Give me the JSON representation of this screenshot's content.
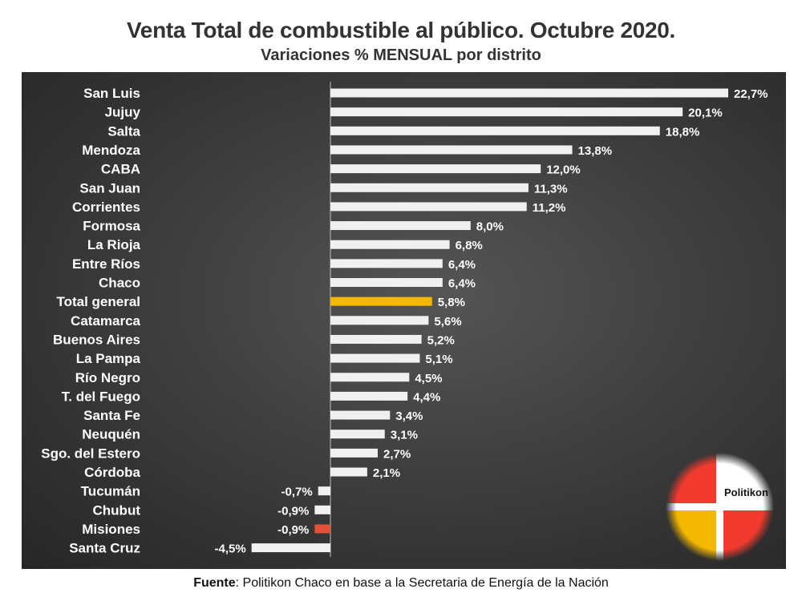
{
  "chart_data": {
    "type": "bar",
    "orientation": "horizontal",
    "title": "Venta Total de combustible al público. Octubre 2020.",
    "subtitle": "Variaciones % MENSUAL por distrito",
    "categories": [
      "San Luis",
      "Jujuy",
      "Salta",
      "Mendoza",
      "CABA",
      "San Juan",
      "Corrientes",
      "Formosa",
      "La Rioja",
      "Entre Ríos",
      "Chaco",
      "Total general",
      "Catamarca",
      "Buenos Aires",
      "La Pampa",
      "Río Negro",
      "T. del Fuego",
      "Santa Fe",
      "Neuquén",
      "Sgo. del Estero",
      "Córdoba",
      "Tucumán",
      "Chubut",
      "Misiones",
      "Santa Cruz"
    ],
    "values": [
      22.7,
      20.1,
      18.8,
      13.8,
      12.0,
      11.3,
      11.2,
      8.0,
      6.8,
      6.4,
      6.4,
      5.8,
      5.6,
      5.2,
      5.1,
      4.5,
      4.4,
      3.4,
      3.1,
      2.7,
      2.1,
      -0.7,
      -0.9,
      -0.9,
      -4.5
    ],
    "value_labels": [
      "22,7%",
      "20,1%",
      "18,8%",
      "13,8%",
      "12,0%",
      "11,3%",
      "11,2%",
      "8,0%",
      "6,8%",
      "6,4%",
      "6,4%",
      "5,8%",
      "5,6%",
      "5,2%",
      "5,1%",
      "4,5%",
      "4,4%",
      "3,4%",
      "3,1%",
      "2,7%",
      "2,1%",
      "-0,7%",
      "-0,9%",
      "-0,9%",
      "-4,5%"
    ],
    "highlight": {
      "Total general": "#f5b800",
      "Misiones": "#e2513a"
    },
    "bar_color": "#f0f0f0",
    "background": "#3a3a3a"
  },
  "footer": {
    "source_label": "Fuente",
    "source_text": ": Politikon Chaco en base a la Secretaria de Energía de la Nación"
  },
  "logo": {
    "text": "Politikon",
    "colors": [
      "#f23a2e",
      "#f5b800",
      "#ffffff"
    ]
  }
}
